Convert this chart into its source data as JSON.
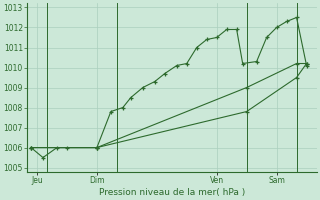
{
  "background_color": "#cce8d8",
  "grid_color": "#aacfbe",
  "line_color": "#2d6a2d",
  "x_tick_labels": [
    "Jeu",
    "Dim",
    "Ven",
    "Sam"
  ],
  "x_tick_positions": [
    0.5,
    3.5,
    9.5,
    12.5
  ],
  "xlabel": "Pression niveau de la mer( hPa )",
  "ylim": [
    1004.8,
    1013.2
  ],
  "yticks": [
    1005,
    1006,
    1007,
    1008,
    1009,
    1010,
    1011,
    1012,
    1013
  ],
  "xlim": [
    0,
    14.5
  ],
  "vlines": [
    1.0,
    4.5,
    11.0,
    13.5
  ],
  "series1_x": [
    0.2,
    0.8,
    1.5,
    2.0,
    3.5,
    4.2,
    4.8,
    5.2,
    5.8,
    6.4,
    6.9,
    7.5,
    8.0,
    8.5,
    9.0,
    9.5,
    10.0,
    10.5,
    10.8,
    11.5,
    12.0,
    12.5,
    13.0,
    13.5,
    14.0
  ],
  "series1_y": [
    1006.0,
    1005.5,
    1006.0,
    1006.0,
    1006.0,
    1007.8,
    1008.0,
    1008.5,
    1009.0,
    1009.3,
    1009.7,
    1010.1,
    1010.2,
    1011.0,
    1011.4,
    1011.5,
    1011.9,
    1011.9,
    1010.2,
    1010.3,
    1011.5,
    1012.0,
    1012.3,
    1012.5,
    1010.1
  ],
  "series2_x": [
    0.2,
    3.5,
    11.0,
    13.5,
    14.0
  ],
  "series2_y": [
    1006.0,
    1006.0,
    1007.8,
    1009.5,
    1010.2
  ],
  "series3_x": [
    0.2,
    3.5,
    11.0,
    13.5,
    14.0
  ],
  "series3_y": [
    1006.0,
    1006.0,
    1009.0,
    1010.2,
    1010.2
  ],
  "title_fontsize": 6.5,
  "tick_fontsize": 5.5
}
